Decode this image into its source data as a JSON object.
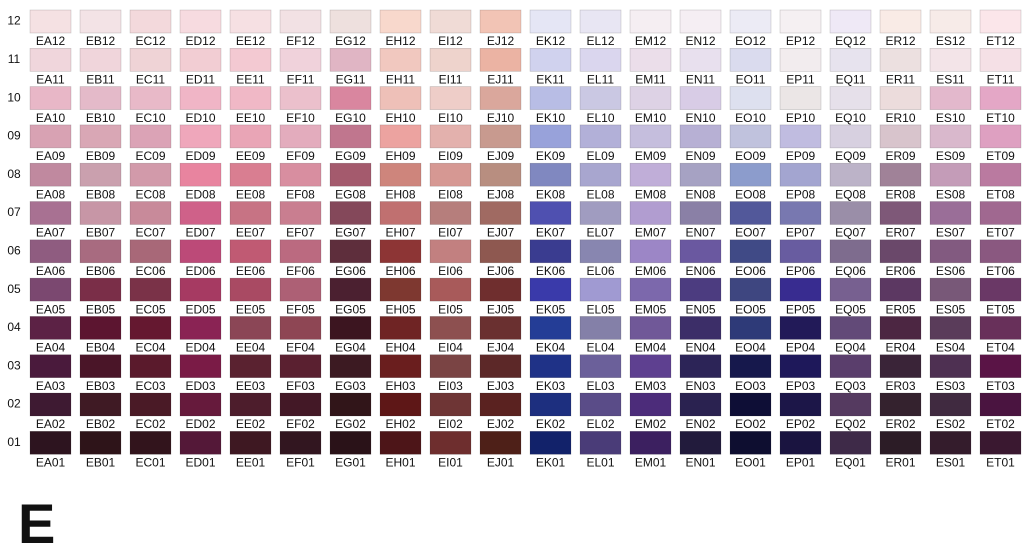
{
  "section": "E",
  "rows": [
    {
      "label": "12",
      "cells": [
        [
          "EA12",
          "#f5e1e3"
        ],
        [
          "EB12",
          "#f3e3e6"
        ],
        [
          "EC12",
          "#f3d9dc"
        ],
        [
          "ED12",
          "#f7dbe0"
        ],
        [
          "EE12",
          "#f6e0e3"
        ],
        [
          "EF12",
          "#f2e1e4"
        ],
        [
          "EG12",
          "#eee0de"
        ],
        [
          "EH12",
          "#f8d8cc"
        ],
        [
          "EI12",
          "#f0dbd6"
        ],
        [
          "EJ12",
          "#f2c4b5"
        ],
        [
          "EK12",
          "#e5e6f5"
        ],
        [
          "EL12",
          "#e8e6f3"
        ],
        [
          "EM12",
          "#f5eef2"
        ],
        [
          "EN12",
          "#f5eef3"
        ],
        [
          "EO12",
          "#ecebf5"
        ],
        [
          "EP12",
          "#f5f0f2"
        ],
        [
          "EQ12",
          "#efe9f6"
        ],
        [
          "ER12",
          "#f9ebe6"
        ],
        [
          "ES12",
          "#f7ebe8"
        ],
        [
          "ET12",
          "#fbe6ea"
        ]
      ]
    },
    {
      "label": "11",
      "cells": [
        [
          "EA11",
          "#f0d6dc"
        ],
        [
          "EB11",
          "#f0d5db"
        ],
        [
          "EC11",
          "#efd3d6"
        ],
        [
          "ED11",
          "#f2cdd3"
        ],
        [
          "EE11",
          "#f3c9d2"
        ],
        [
          "EF11",
          "#f0d2db"
        ],
        [
          "EG11",
          "#e0b5c4"
        ],
        [
          "EH11",
          "#f1c8bf"
        ],
        [
          "EI11",
          "#eed3cc"
        ],
        [
          "EJ11",
          "#ebb3a3"
        ],
        [
          "EK11",
          "#d0d2ee"
        ],
        [
          "EL11",
          "#dad6ee"
        ],
        [
          "EM11",
          "#ebdeea"
        ],
        [
          "EN11",
          "#e8e0ee"
        ],
        [
          "EO11",
          "#dadbee"
        ],
        [
          "EP11",
          "#f2ecee"
        ],
        [
          "EQ11",
          "#e7e3ee"
        ],
        [
          "ER11",
          "#ece0e0"
        ],
        [
          "ES11",
          "#f3e4e8"
        ],
        [
          "ET11",
          "#f5e0e6"
        ]
      ]
    },
    {
      "label": "10",
      "cells": [
        [
          "EA10",
          "#e8b7c7"
        ],
        [
          "EB10",
          "#e4bac9"
        ],
        [
          "EC10",
          "#e8b9c8"
        ],
        [
          "ED10",
          "#f0b5c6"
        ],
        [
          "EE10",
          "#f0b8c6"
        ],
        [
          "EF10",
          "#ebc0cc"
        ],
        [
          "EG10",
          "#d9869f"
        ],
        [
          "EH10",
          "#eec0b8"
        ],
        [
          "EI10",
          "#eecdc8"
        ],
        [
          "EJ10",
          "#daa79c"
        ],
        [
          "EK10",
          "#b8bde5"
        ],
        [
          "EL10",
          "#cac8e3"
        ],
        [
          "EM10",
          "#ddd2e5"
        ],
        [
          "EN10",
          "#d8cce6"
        ],
        [
          "EO10",
          "#dde0ef"
        ],
        [
          "EP10",
          "#ebe6e6"
        ],
        [
          "EQ10",
          "#e6e0ea"
        ],
        [
          "ER10",
          "#ecdcdc"
        ],
        [
          "ES10",
          "#e3b8cc"
        ],
        [
          "ET10",
          "#e4a7c6"
        ]
      ]
    },
    {
      "label": "09",
      "cells": [
        [
          "EA09",
          "#d8a2b3"
        ],
        [
          "EB09",
          "#d9a7b5"
        ],
        [
          "EC09",
          "#dba3b6"
        ],
        [
          "ED09",
          "#efa7bb"
        ],
        [
          "EE09",
          "#e9a5b6"
        ],
        [
          "EF09",
          "#e3acbd"
        ],
        [
          "EG09",
          "#c0768e"
        ],
        [
          "EH09",
          "#eca3a0"
        ],
        [
          "EI09",
          "#e3b1ad"
        ],
        [
          "EJ09",
          "#c89a8f"
        ],
        [
          "EK09",
          "#98a2da"
        ],
        [
          "EL09",
          "#b2b0d8"
        ],
        [
          "EM09",
          "#c5bedd"
        ],
        [
          "EN09",
          "#b7b0d4"
        ],
        [
          "EO09",
          "#c0c2dd"
        ],
        [
          "EP09",
          "#c0bce0"
        ],
        [
          "EQ09",
          "#d7d0e0"
        ],
        [
          "ER09",
          "#d8c4cc"
        ],
        [
          "ES09",
          "#d9b8cc"
        ],
        [
          "ET09",
          "#dea0c1"
        ]
      ]
    },
    {
      "label": "08",
      "cells": [
        [
          "EA08",
          "#c0899f"
        ],
        [
          "EB08",
          "#caa0ae"
        ],
        [
          "EC08",
          "#d29aaa"
        ],
        [
          "ED08",
          "#e8849f"
        ],
        [
          "EE08",
          "#d97e91"
        ],
        [
          "EF08",
          "#d88ea0"
        ],
        [
          "EG08",
          "#a45a6d"
        ],
        [
          "EH08",
          "#ce857c"
        ],
        [
          "EI08",
          "#d69893"
        ],
        [
          "EJ08",
          "#b88e80"
        ],
        [
          "EK08",
          "#8088c0"
        ],
        [
          "EL08",
          "#a8a6cf"
        ],
        [
          "EM08",
          "#c0aed8"
        ],
        [
          "EN08",
          "#a6a2c3"
        ],
        [
          "EO08",
          "#8c9ccc"
        ],
        [
          "EP08",
          "#a3a5d0"
        ],
        [
          "EQ08",
          "#bcb3c8"
        ],
        [
          "ER08",
          "#a08298"
        ],
        [
          "ES08",
          "#c49cb8"
        ],
        [
          "ET08",
          "#ba7aa0"
        ]
      ]
    },
    {
      "label": "07",
      "cells": [
        [
          "EA07",
          "#a87192"
        ],
        [
          "EB07",
          "#c796a6"
        ],
        [
          "EC07",
          "#c88a9a"
        ],
        [
          "ED07",
          "#cf6189"
        ],
        [
          "EE07",
          "#c77384"
        ],
        [
          "EF07",
          "#c97e90"
        ],
        [
          "EG07",
          "#84485a"
        ],
        [
          "EH07",
          "#c07070"
        ],
        [
          "EI07",
          "#b67e7c"
        ],
        [
          "EJ07",
          "#a06a62"
        ],
        [
          "EK07",
          "#4f50b0"
        ],
        [
          "EL07",
          "#a09cc0"
        ],
        [
          "EM07",
          "#b19dd0"
        ],
        [
          "EN07",
          "#8a80a6"
        ],
        [
          "EO07",
          "#52589a"
        ],
        [
          "EP07",
          "#7878b0"
        ],
        [
          "EQ07",
          "#9a8ea8"
        ],
        [
          "ER07",
          "#7e5878"
        ],
        [
          "ES07",
          "#9a6e98"
        ],
        [
          "ET07",
          "#a06890"
        ]
      ]
    },
    {
      "label": "06",
      "cells": [
        [
          "EA06",
          "#8f5c80"
        ],
        [
          "EB06",
          "#a86b80"
        ],
        [
          "EC06",
          "#a86878"
        ],
        [
          "ED06",
          "#bc4a78"
        ],
        [
          "EE06",
          "#c05a73"
        ],
        [
          "EF06",
          "#bb6a80"
        ],
        [
          "EG06",
          "#5e2e3c"
        ],
        [
          "EH06",
          "#8d3535"
        ],
        [
          "EI06",
          "#c28080"
        ],
        [
          "EJ06",
          "#8e5850"
        ],
        [
          "EK06",
          "#3a3c90"
        ],
        [
          "EL06",
          "#8886b0"
        ],
        [
          "EM06",
          "#9c86c6"
        ],
        [
          "EN06",
          "#6a58a0"
        ],
        [
          "EO06",
          "#404a86"
        ],
        [
          "EP06",
          "#685ca0"
        ],
        [
          "EQ06",
          "#7e6c8e"
        ],
        [
          "ER06",
          "#6a486a"
        ],
        [
          "ES06",
          "#825a80"
        ],
        [
          "ET06",
          "#8a5880"
        ]
      ]
    },
    {
      "label": "05",
      "cells": [
        [
          "EA05",
          "#7b4870"
        ],
        [
          "EB05",
          "#7a2e48"
        ],
        [
          "EC05",
          "#7a3248"
        ],
        [
          "ED05",
          "#a63a62"
        ],
        [
          "EE05",
          "#a94a63"
        ],
        [
          "EF05",
          "#ad6075"
        ],
        [
          "EG05",
          "#4b2030"
        ],
        [
          "EH05",
          "#7e3830"
        ],
        [
          "EI05",
          "#a85a5a"
        ],
        [
          "EJ05",
          "#6f2e2e"
        ],
        [
          "EK05",
          "#3a3aaa"
        ],
        [
          "EL05",
          "#a09ad2"
        ],
        [
          "EM05",
          "#7c68ac"
        ],
        [
          "EN05",
          "#4c3c80"
        ],
        [
          "EO05",
          "#3e4680"
        ],
        [
          "EP05",
          "#382c90"
        ],
        [
          "EQ05",
          "#776090"
        ],
        [
          "ER05",
          "#5c3862"
        ],
        [
          "ES05",
          "#785878"
        ],
        [
          "ET05",
          "#6a3866"
        ]
      ]
    },
    {
      "label": "04",
      "cells": [
        [
          "EA04",
          "#5c2245"
        ],
        [
          "EB04",
          "#5c1530"
        ],
        [
          "EC04",
          "#651830"
        ],
        [
          "ED04",
          "#8a2354"
        ],
        [
          "EE04",
          "#8b4656"
        ],
        [
          "EF04",
          "#8e4654"
        ],
        [
          "EG04",
          "#3c1520"
        ],
        [
          "EH04",
          "#6f2424"
        ],
        [
          "EI04",
          "#8d5050"
        ],
        [
          "EJ04",
          "#6a3030"
        ],
        [
          "EK04",
          "#243d96"
        ],
        [
          "EL04",
          "#8480a8"
        ],
        [
          "EM04",
          "#705898"
        ],
        [
          "EN04",
          "#3c2e68"
        ],
        [
          "EO04",
          "#2e3a78"
        ],
        [
          "EP04",
          "#221a58"
        ],
        [
          "EQ04",
          "#624a78"
        ],
        [
          "ER04",
          "#4c2642"
        ],
        [
          "ES04",
          "#5a3c5a"
        ],
        [
          "ET04",
          "#68305a"
        ]
      ]
    },
    {
      "label": "03",
      "cells": [
        [
          "EA03",
          "#4a1a3c"
        ],
        [
          "EB03",
          "#4a1528"
        ],
        [
          "EC03",
          "#5a1a2c"
        ],
        [
          "ED03",
          "#7a1b46"
        ],
        [
          "EE03",
          "#5a2230"
        ],
        [
          "EF03",
          "#5a2030"
        ],
        [
          "EG03",
          "#3c1a22"
        ],
        [
          "EH03",
          "#6a1e1e"
        ],
        [
          "EI03",
          "#7a4444"
        ],
        [
          "EJ03",
          "#5c2828"
        ],
        [
          "EK03",
          "#1f3287"
        ],
        [
          "EL03",
          "#6b609a"
        ],
        [
          "EM03",
          "#5e4090"
        ],
        [
          "EN03",
          "#2c2457"
        ],
        [
          "EO03",
          "#16184c"
        ],
        [
          "EP03",
          "#1e185a"
        ],
        [
          "EQ03",
          "#5a3e6c"
        ],
        [
          "ER03",
          "#3a2438"
        ],
        [
          "ES03",
          "#4e3052"
        ],
        [
          "ET03",
          "#5a1446"
        ]
      ]
    },
    {
      "label": "02",
      "cells": [
        [
          "EA02",
          "#3e1a32"
        ],
        [
          "EB02",
          "#3f1a24"
        ],
        [
          "EC02",
          "#4a1a26"
        ],
        [
          "ED02",
          "#661a3c"
        ],
        [
          "EE02",
          "#4d1d2c"
        ],
        [
          "EF02",
          "#431826"
        ],
        [
          "EG02",
          "#311519"
        ],
        [
          "EH02",
          "#5e1717"
        ],
        [
          "EI02",
          "#6e3535"
        ],
        [
          "EJ02",
          "#5a2220"
        ],
        [
          "EK02",
          "#1d2f7f"
        ],
        [
          "EL02",
          "#5a4c88"
        ],
        [
          "EM02",
          "#4c2c7a"
        ],
        [
          "EN02",
          "#2a2250"
        ],
        [
          "EO02",
          "#0e0e36"
        ],
        [
          "EP02",
          "#1c1648"
        ],
        [
          "EQ02",
          "#553a60"
        ],
        [
          "ER02",
          "#34222e"
        ],
        [
          "ES02",
          "#402a40"
        ],
        [
          "ET02",
          "#4a1440"
        ]
      ]
    },
    {
      "label": "01",
      "cells": [
        [
          "EA01",
          "#2d141f"
        ],
        [
          "EB01",
          "#2e1419"
        ],
        [
          "EC01",
          "#32141c"
        ],
        [
          "ED01",
          "#541838"
        ],
        [
          "EE01",
          "#3e1822"
        ],
        [
          "EF01",
          "#321620"
        ],
        [
          "EG01",
          "#2a1218"
        ],
        [
          "EH01",
          "#4d1518"
        ],
        [
          "EI01",
          "#6e2e2e"
        ],
        [
          "EJ01",
          "#4e2018"
        ],
        [
          "EK01",
          "#12226a"
        ],
        [
          "EL01",
          "#4a3c78"
        ],
        [
          "EM01",
          "#3c2060"
        ],
        [
          "EN01",
          "#221b3c"
        ],
        [
          "EO01",
          "#0e0e30"
        ],
        [
          "EP01",
          "#1a1440"
        ],
        [
          "EQ01",
          "#3e2a48"
        ],
        [
          "ER01",
          "#2c1c26"
        ],
        [
          "ES01",
          "#341c2c"
        ],
        [
          "ET01",
          "#3a1830"
        ]
      ]
    }
  ]
}
